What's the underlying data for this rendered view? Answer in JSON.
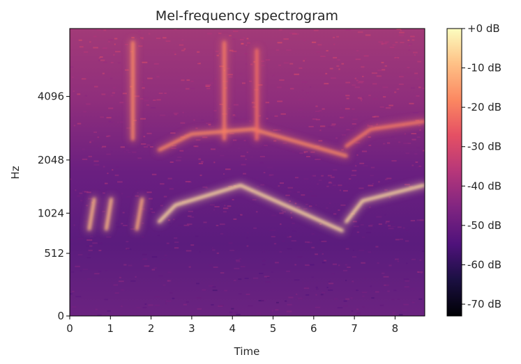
{
  "chart_data": {
    "type": "heatmap",
    "title": "Mel-frequency spectrogram",
    "xlabel": "Time",
    "ylabel": "Hz",
    "x_axis": {
      "range": [
        0,
        8.73
      ],
      "ticks": [
        0,
        1,
        2,
        3,
        4,
        5,
        6,
        7,
        8
      ],
      "tick_labels": [
        "0",
        "1",
        "2",
        "3",
        "4",
        "5",
        "6",
        "7",
        "8"
      ]
    },
    "y_axis": {
      "scale": "mel",
      "ticks": [
        0,
        512,
        1024,
        2048,
        4096
      ],
      "tick_labels": [
        "0",
        "512",
        "1024",
        "2048",
        "4096"
      ]
    },
    "colorbar": {
      "range": [
        -73,
        0
      ],
      "ticks": [
        0,
        -10,
        -20,
        -30,
        -40,
        -50,
        -60,
        -70
      ],
      "tick_labels": [
        "+0 dB",
        "-10 dB",
        "-20 dB",
        "-30 dB",
        "-40 dB",
        "-50 dB",
        "-60 dB",
        "-70 dB"
      ],
      "colormap": "magma"
    },
    "features": [
      {
        "name": "main sweep",
        "points": [
          [
            2.2,
            900
          ],
          [
            2.6,
            1150
          ],
          [
            4.2,
            1500
          ],
          [
            6.7,
            780
          ]
        ],
        "level_db": -5
      },
      {
        "name": "second sweep",
        "points": [
          [
            6.8,
            900
          ],
          [
            7.2,
            1220
          ],
          [
            8.7,
            1500
          ]
        ],
        "level_db": -5
      },
      {
        "name": "harmonic sweep",
        "points": [
          [
            2.2,
            2300
          ],
          [
            3.0,
            2750
          ],
          [
            4.5,
            2900
          ],
          [
            6.8,
            2150
          ]
        ],
        "level_db": -18
      },
      {
        "name": "harmonic sweep 2",
        "points": [
          [
            6.8,
            2400
          ],
          [
            7.4,
            2900
          ],
          [
            8.7,
            3150
          ]
        ],
        "level_db": -20
      },
      {
        "name": "chirp",
        "points": [
          [
            0.48,
            800
          ],
          [
            0.6,
            1250
          ]
        ],
        "level_db": -10
      },
      {
        "name": "chirp",
        "points": [
          [
            0.9,
            800
          ],
          [
            1.02,
            1250
          ]
        ],
        "level_db": -10
      },
      {
        "name": "chirp",
        "points": [
          [
            1.65,
            800
          ],
          [
            1.78,
            1250
          ]
        ],
        "level_db": -12
      },
      {
        "name": "broadband",
        "points": [
          [
            1.55,
            2600
          ],
          [
            1.55,
            7000
          ]
        ],
        "level_db": -18
      },
      {
        "name": "broadband",
        "points": [
          [
            3.8,
            2600
          ],
          [
            3.8,
            7000
          ]
        ],
        "level_db": -20
      },
      {
        "name": "broadband",
        "points": [
          [
            4.6,
            2600
          ],
          [
            4.6,
            6500
          ]
        ],
        "level_db": -22
      }
    ]
  }
}
